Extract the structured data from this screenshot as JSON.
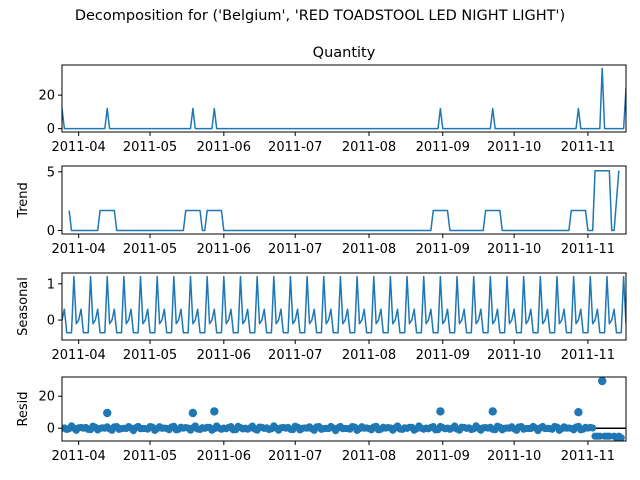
{
  "figure": {
    "title": "Decomposition for ('Belgium', 'RED TOADSTOOL LED NIGHT LIGHT')"
  },
  "colors": {
    "series": "#1f77b4",
    "axis": "#000000",
    "zero_line": "#000000"
  },
  "chart_data": [
    {
      "type": "line",
      "title": "Quantity",
      "ylabel": "",
      "x_start": "2011-03-25",
      "x_end": "2011-11-17",
      "xticks": [
        "2011-04",
        "2011-05",
        "2011-06",
        "2011-07",
        "2011-08",
        "2011-09",
        "2011-10",
        "2011-11"
      ],
      "yticks": [
        0,
        20
      ],
      "ylim": [
        -2,
        38
      ],
      "x": [
        "2011-03-25",
        "2011-03-26",
        "2011-04-12",
        "2011-04-13",
        "2011-04-14",
        "2011-05-18",
        "2011-05-19",
        "2011-05-20",
        "2011-05-27",
        "2011-05-28",
        "2011-05-29",
        "2011-08-30",
        "2011-08-31",
        "2011-09-01",
        "2011-09-21",
        "2011-09-22",
        "2011-09-23",
        "2011-10-27",
        "2011-10-28",
        "2011-10-29",
        "2011-11-06",
        "2011-11-07",
        "2011-11-08",
        "2011-11-16",
        "2011-11-17"
      ],
      "values": [
        12,
        0,
        0,
        12,
        0,
        0,
        12,
        0,
        0,
        12,
        0,
        0,
        12,
        0,
        0,
        12,
        0,
        0,
        12,
        0,
        0,
        36,
        0,
        0,
        24
      ]
    },
    {
      "type": "line",
      "title": "",
      "ylabel": "Trend",
      "x_start": "2011-03-25",
      "x_end": "2011-11-17",
      "xticks": [
        "2011-04",
        "2011-05",
        "2011-06",
        "2011-07",
        "2011-08",
        "2011-09",
        "2011-10",
        "2011-11"
      ],
      "yticks": [
        0,
        5
      ],
      "ylim": [
        -0.3,
        5.5
      ],
      "x": [
        "2011-03-28",
        "2011-03-29",
        "2011-04-09",
        "2011-04-10",
        "2011-04-16",
        "2011-04-17",
        "2011-05-15",
        "2011-05-16",
        "2011-05-22",
        "2011-05-23",
        "2011-05-24",
        "2011-05-25",
        "2011-05-31",
        "2011-06-01",
        "2011-08-27",
        "2011-08-28",
        "2011-09-03",
        "2011-09-04",
        "2011-09-18",
        "2011-09-19",
        "2011-09-25",
        "2011-09-26",
        "2011-10-24",
        "2011-10-25",
        "2011-10-31",
        "2011-11-01",
        "2011-11-03",
        "2011-11-04",
        "2011-11-10",
        "2011-11-11",
        "2011-11-12",
        "2011-11-14"
      ],
      "values": [
        1.7,
        0,
        0,
        1.7,
        1.7,
        0,
        0,
        1.7,
        1.7,
        0,
        0,
        1.7,
        1.7,
        0,
        0,
        1.7,
        1.7,
        0,
        0,
        1.7,
        1.7,
        0,
        0,
        1.7,
        1.7,
        0,
        0,
        5.1,
        5.1,
        0,
        0,
        5.1
      ]
    },
    {
      "type": "line",
      "title": "",
      "ylabel": "Seasonal",
      "x_start": "2011-03-25",
      "x_end": "2011-11-17",
      "xticks": [
        "2011-04",
        "2011-05",
        "2011-06",
        "2011-07",
        "2011-08",
        "2011-09",
        "2011-10",
        "2011-11"
      ],
      "yticks": [
        0,
        1
      ],
      "ylim": [
        -0.55,
        1.3
      ],
      "period_days": 7,
      "first_day": "2011-03-25",
      "weekly_pattern": [
        0.0,
        0.3,
        -0.35,
        -0.35,
        -0.35,
        1.2,
        -0.1
      ]
    },
    {
      "type": "scatter",
      "title": "",
      "ylabel": "Resid",
      "x_start": "2011-03-25",
      "x_end": "2011-11-17",
      "xticks": [
        "2011-04",
        "2011-05",
        "2011-06",
        "2011-07",
        "2011-08",
        "2011-09",
        "2011-10",
        "2011-11"
      ],
      "yticks": [
        0,
        20
      ],
      "ylim": [
        -8,
        32
      ],
      "x": [
        "2011-04-13",
        "2011-05-19",
        "2011-05-28",
        "2011-08-31",
        "2011-09-22",
        "2011-10-28",
        "2011-11-07"
      ],
      "values": [
        9.5,
        9.5,
        10.5,
        10.5,
        10.5,
        10,
        29.5
      ],
      "baseline_noise": [
        -1.5,
        1.5
      ],
      "low_points_x": [
        "2011-11-04",
        "2011-11-05",
        "2011-11-06",
        "2011-11-08",
        "2011-11-09",
        "2011-11-10",
        "2011-11-12",
        "2011-11-13",
        "2011-11-14",
        "2011-11-15"
      ],
      "low_points_values": [
        -5,
        -5,
        -5,
        -5,
        -5,
        -5,
        -5,
        -6,
        -5,
        -6
      ]
    }
  ]
}
